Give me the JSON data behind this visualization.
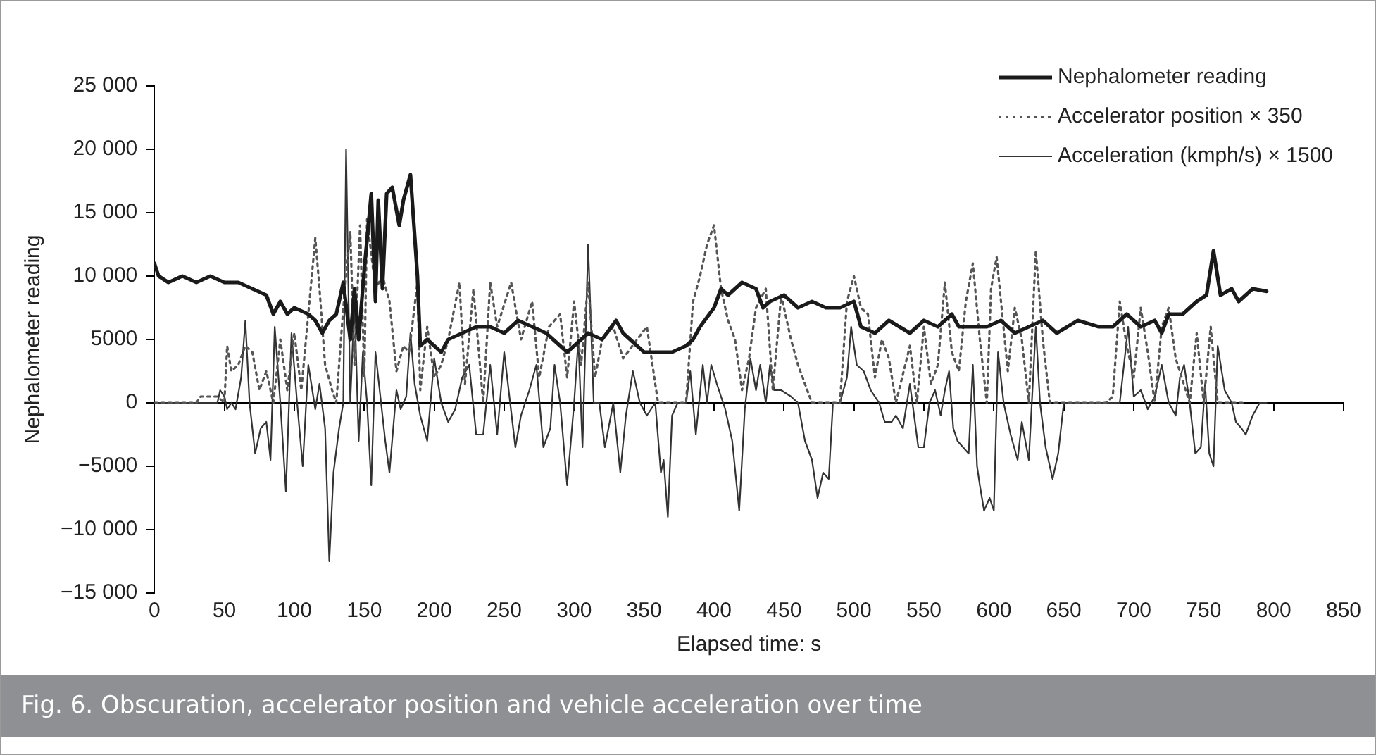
{
  "chart_data": {
    "type": "line",
    "xlabel": "Elapsed time: s",
    "ylabel": "Nephalometer reading",
    "annotations": [
      "Fig. 6. Obscuration, accelerator position and vehicle acceleration over time"
    ],
    "xlim": [
      0,
      850
    ],
    "xticks": [
      0,
      50,
      100,
      150,
      200,
      250,
      300,
      350,
      400,
      450,
      500,
      550,
      600,
      650,
      700,
      750,
      800,
      850
    ],
    "ylim": [
      -15000,
      25000
    ],
    "yticks": [
      {
        "value": -15000,
        "label": "−15 000"
      },
      {
        "value": -10000,
        "label": "−10 000"
      },
      {
        "value": -5000,
        "label": "−5000"
      },
      0,
      5000,
      {
        "value": 10000,
        "label": "10 000"
      },
      {
        "value": 15000,
        "label": "15 000"
      },
      {
        "value": 20000,
        "label": "20 000"
      },
      {
        "value": 25000,
        "label": "25 000"
      }
    ],
    "grid": false,
    "ref_lines": [
      {
        "axis": "y",
        "value": 0,
        "color": "#000000",
        "line_style": "solid"
      }
    ],
    "legend": "top right",
    "marker": "none",
    "series": [
      {
        "name": "Nephalometer reading",
        "color": "#1a1a1a",
        "line_style": "solid",
        "x": [
          0,
          3,
          10,
          20,
          30,
          40,
          50,
          60,
          70,
          80,
          85,
          90,
          95,
          100,
          110,
          115,
          120,
          125,
          130,
          135,
          140,
          143,
          146,
          150,
          155,
          158,
          160,
          163,
          166,
          170,
          175,
          178,
          183,
          188,
          190,
          195,
          200,
          205,
          210,
          220,
          230,
          240,
          250,
          260,
          270,
          280,
          290,
          295,
          300,
          305,
          310,
          320,
          330,
          335,
          340,
          350,
          360,
          370,
          380,
          385,
          390,
          400,
          405,
          410,
          420,
          430,
          435,
          440,
          450,
          460,
          470,
          480,
          490,
          500,
          505,
          515,
          525,
          540,
          550,
          560,
          570,
          575,
          585,
          595,
          605,
          615,
          625,
          635,
          645,
          660,
          675,
          685,
          695,
          705,
          715,
          720,
          725,
          735,
          745,
          752,
          757,
          762,
          770,
          775,
          785,
          795
        ],
        "values": [
          11000,
          10000,
          9500,
          10000,
          9500,
          10000,
          9500,
          9500,
          9000,
          8500,
          7000,
          8000,
          7000,
          7500,
          7000,
          6500,
          5500,
          6500,
          7000,
          9500,
          5000,
          9000,
          5000,
          10500,
          16500,
          8000,
          16000,
          9000,
          16500,
          17000,
          14000,
          16000,
          18000,
          10000,
          4500,
          5000,
          4500,
          4000,
          5000,
          5500,
          6000,
          6000,
          5500,
          6500,
          6000,
          5500,
          4500,
          4000,
          4500,
          5000,
          5500,
          5000,
          6500,
          5500,
          5000,
          4000,
          4000,
          4000,
          4500,
          5000,
          6000,
          7500,
          9000,
          8500,
          9500,
          9000,
          7500,
          8000,
          8500,
          7500,
          8000,
          7500,
          7500,
          8000,
          6000,
          5500,
          6500,
          5500,
          6500,
          6000,
          7000,
          6000,
          6000,
          6000,
          6500,
          5500,
          6000,
          6500,
          5500,
          6500,
          6000,
          6000,
          7000,
          6000,
          6500,
          5500,
          7000,
          7000,
          8000,
          8500,
          12000,
          8500,
          9000,
          8000,
          9000,
          8800
        ]
      },
      {
        "name": "Accelerator position × 350",
        "color": "#555555",
        "line_style": "dotted",
        "x": [
          0,
          30,
          33,
          45,
          50,
          52,
          55,
          60,
          65,
          70,
          75,
          80,
          85,
          90,
          95,
          100,
          105,
          110,
          115,
          118,
          122,
          127,
          130,
          135,
          140,
          143,
          147,
          150,
          152,
          158,
          163,
          168,
          173,
          178,
          182,
          188,
          190,
          195,
          200,
          205,
          210,
          218,
          222,
          228,
          235,
          240,
          245,
          255,
          262,
          270,
          275,
          282,
          290,
          295,
          300,
          305,
          310,
          315,
          320,
          328,
          335,
          345,
          352,
          360,
          380,
          385,
          390,
          395,
          400,
          405,
          410,
          415,
          420,
          425,
          430,
          437,
          442,
          448,
          455,
          460,
          470,
          490,
          495,
          500,
          505,
          510,
          515,
          520,
          525,
          530,
          540,
          545,
          550,
          555,
          560,
          565,
          570,
          575,
          580,
          585,
          590,
          595,
          598,
          602,
          606,
          610,
          615,
          620,
          625,
          630,
          635,
          640,
          680,
          685,
          690,
          695,
          700,
          705,
          710,
          715,
          720,
          725,
          730,
          740,
          745,
          750,
          755,
          760,
          780
        ],
        "values": [
          0,
          0,
          500,
          500,
          0,
          4500,
          2500,
          3000,
          4500,
          4000,
          1000,
          2500,
          0,
          5000,
          1000,
          5500,
          1000,
          7000,
          13000,
          9000,
          3000,
          1000,
          0,
          7500,
          13500,
          3000,
          14000,
          2000,
          14500,
          9000,
          10000,
          8000,
          2500,
          4500,
          4000,
          9500,
          1000,
          6000,
          2000,
          3000,
          5000,
          9500,
          1500,
          9000,
          0,
          9500,
          6000,
          9500,
          5000,
          8000,
          2000,
          6000,
          7000,
          2000,
          8000,
          3000,
          9500,
          2000,
          5000,
          6000,
          3500,
          5000,
          6000,
          0,
          0,
          8000,
          10000,
          12500,
          14000,
          9000,
          6500,
          5000,
          1000,
          3500,
          7500,
          9000,
          1000,
          8500,
          5000,
          3000,
          0,
          0,
          8000,
          10000,
          7500,
          7000,
          2000,
          5000,
          3500,
          0,
          4500,
          0,
          6000,
          1500,
          3000,
          9500,
          4000,
          2500,
          8000,
          11000,
          5000,
          0,
          9000,
          11500,
          7000,
          2500,
          7500,
          5000,
          0,
          12000,
          5000,
          0,
          0,
          500,
          8000,
          4500,
          2000,
          7500,
          4000,
          0,
          6000,
          7500,
          3500,
          0,
          5500,
          0,
          6000,
          0,
          0
        ]
      },
      {
        "name": "Acceleration (kmph/s) × 1500",
        "color": "#333333",
        "line_style": "solid",
        "x": [
          0,
          45,
          47,
          50,
          52,
          55,
          58,
          62,
          65,
          68,
          72,
          76,
          80,
          83,
          86,
          90,
          94,
          98,
          102,
          106,
          110,
          115,
          118,
          122,
          125,
          128,
          132,
          135,
          137,
          140,
          143,
          146,
          149,
          152,
          155,
          158,
          162,
          165,
          168,
          173,
          176,
          180,
          183,
          186,
          190,
          195,
          200,
          205,
          210,
          215,
          220,
          225,
          230,
          235,
          240,
          245,
          250,
          258,
          262,
          268,
          273,
          278,
          283,
          286,
          290,
          295,
          300,
          303,
          306,
          310,
          314,
          318,
          322,
          328,
          333,
          337,
          342,
          347,
          352,
          358,
          362,
          364,
          367,
          370,
          374,
          380,
          383,
          387,
          392,
          395,
          398,
          402,
          408,
          413,
          418,
          422,
          426,
          430,
          433,
          437,
          440,
          443,
          448,
          455,
          460,
          465,
          470,
          474,
          478,
          482,
          485,
          490,
          495,
          498,
          502,
          507,
          512,
          518,
          522,
          527,
          530,
          535,
          540,
          546,
          550,
          554,
          558,
          562,
          565,
          568,
          571,
          574,
          578,
          582,
          585,
          588,
          590,
          593,
          597,
          600,
          603,
          607,
          612,
          617,
          620,
          625,
          630,
          633,
          637,
          642,
          646,
          650,
          660,
          690,
          693,
          696,
          700,
          705,
          710,
          715,
          720,
          725,
          730,
          733,
          736,
          740,
          744,
          748,
          751,
          754,
          757,
          760,
          765,
          770,
          773,
          777,
          780,
          785,
          790,
          795
        ],
        "values": [
          0,
          0,
          1000,
          500,
          -500,
          0,
          -500,
          2000,
          6500,
          0,
          -4000,
          -2000,
          -1500,
          -4500,
          6000,
          0,
          -7000,
          5500,
          0,
          -5000,
          3000,
          -500,
          1500,
          -2000,
          -12500,
          -5500,
          -2000,
          0,
          20000,
          0,
          8000,
          -3000,
          4000,
          0,
          -6500,
          4000,
          0,
          -3000,
          -5500,
          1000,
          -500,
          500,
          5500,
          1500,
          -1000,
          -3000,
          3500,
          0,
          -1500,
          -500,
          2000,
          3000,
          -2500,
          -2500,
          3000,
          -2500,
          4000,
          -3500,
          -1000,
          1000,
          3000,
          -3500,
          -2000,
          3000,
          0,
          -6500,
          0,
          5000,
          -3500,
          12500,
          0,
          0,
          -3500,
          0,
          -5500,
          -1000,
          2500,
          0,
          -1000,
          0,
          -5500,
          -4500,
          -9000,
          -1000,
          0,
          0,
          2500,
          -2500,
          3000,
          0,
          3000,
          1500,
          -500,
          -3000,
          -8500,
          -500,
          3500,
          1000,
          3000,
          0,
          3000,
          1000,
          1000,
          500,
          0,
          -3000,
          -4500,
          -7500,
          -5500,
          -6000,
          0,
          0,
          2000,
          6000,
          3000,
          2500,
          1000,
          0,
          -1500,
          -1500,
          -1000,
          -2000,
          1500,
          -3500,
          -3500,
          0,
          1000,
          -1000,
          1000,
          2500,
          -2000,
          -3000,
          -3500,
          -4000,
          3000,
          -5000,
          -6500,
          -8500,
          -7500,
          -8500,
          4000,
          0,
          -2500,
          -4500,
          -1500,
          -4500,
          6000,
          0,
          -3500,
          -6000,
          -4000,
          0,
          0,
          0,
          3000,
          6000,
          500,
          1000,
          -500,
          500,
          3000,
          0,
          -1000,
          2000,
          3000,
          0,
          -4000,
          -3500,
          1500,
          -4000,
          -5000,
          4500,
          1000,
          0,
          -1500,
          -2000,
          -2500,
          -1000,
          0,
          0
        ]
      }
    ]
  }
}
